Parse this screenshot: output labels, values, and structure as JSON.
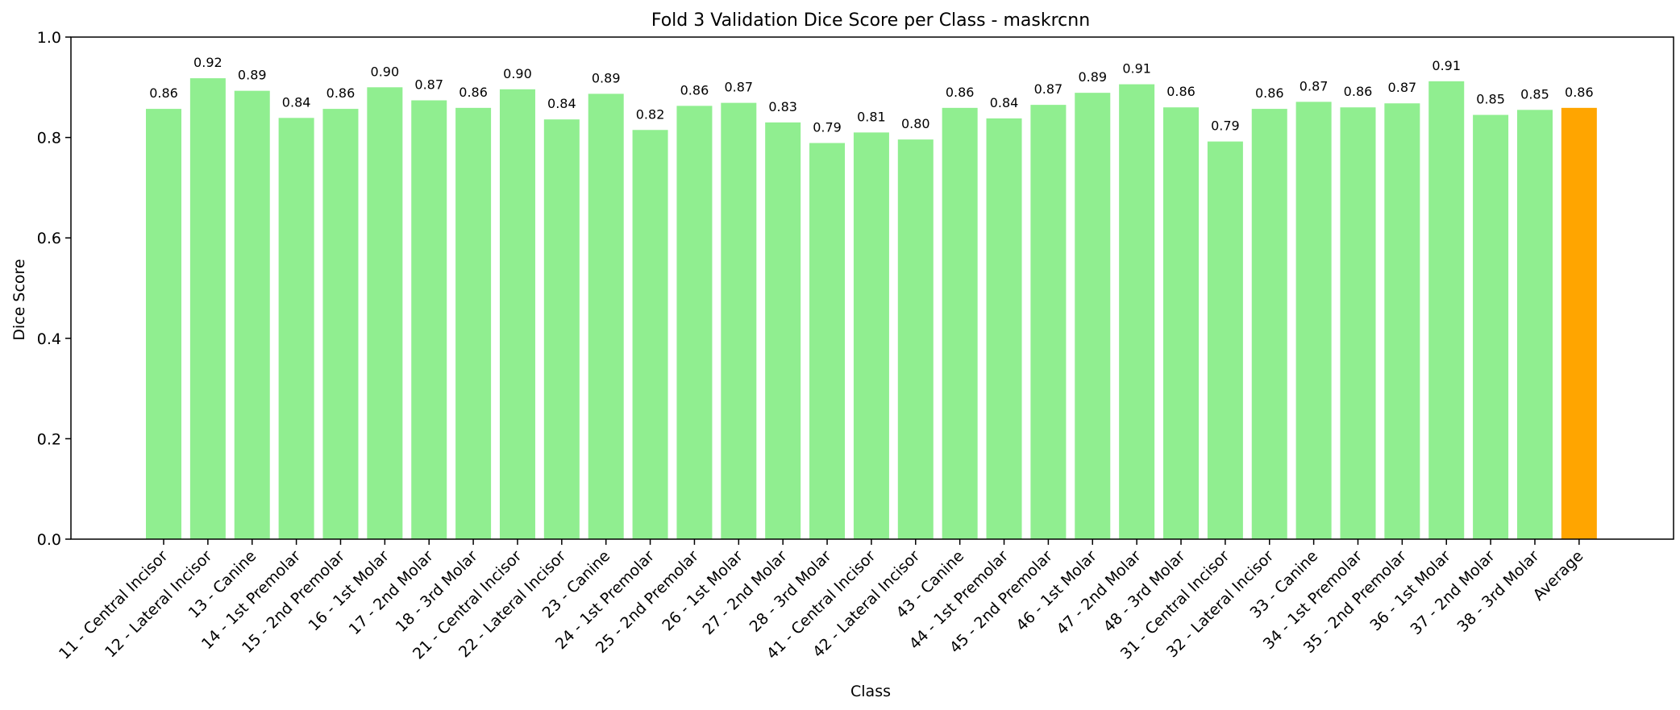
{
  "chart_data": {
    "type": "bar",
    "title": "Fold 3 Validation Dice Score per Class - maskrcnn",
    "xlabel": "Class",
    "ylabel": "Dice Score",
    "ylim": [
      0,
      1.0
    ],
    "yticks": [
      "0.0",
      "0.2",
      "0.4",
      "0.6",
      "0.8",
      "1.0"
    ],
    "grid": false,
    "categories": [
      "11 - Central Incisor",
      "12 - Lateral Incisor",
      "13 - Canine",
      "14 - 1st Premolar",
      "15 - 2nd Premolar",
      "16 - 1st Molar",
      "17 - 2nd Molar",
      "18 - 3rd Molar",
      "21 - Central Incisor",
      "22 - Lateral Incisor",
      "23 - Canine",
      "24 - 1st Premolar",
      "25 - 2nd Premolar",
      "26 - 1st Molar",
      "27 - 2nd Molar",
      "28 - 3rd Molar",
      "41 - Central Incisor",
      "42 - Lateral Incisor",
      "43 - Canine",
      "44 - 1st Premolar",
      "45 - 2nd Premolar",
      "46 - 1st Molar",
      "47 - 2nd Molar",
      "48 - 3rd Molar",
      "31 - Central Incisor",
      "32 - Lateral Incisor",
      "33 - Canine",
      "34 - 1st Premolar",
      "35 - 2nd Premolar",
      "36 - 1st Molar",
      "37 - 2nd Molar",
      "38 - 3rd Molar",
      "Average"
    ],
    "values": [
      0.857,
      0.918,
      0.893,
      0.839,
      0.857,
      0.9,
      0.874,
      0.859,
      0.896,
      0.836,
      0.887,
      0.815,
      0.863,
      0.869,
      0.83,
      0.789,
      0.81,
      0.796,
      0.859,
      0.838,
      0.865,
      0.889,
      0.906,
      0.86,
      0.792,
      0.857,
      0.871,
      0.86,
      0.868,
      0.912,
      0.845,
      0.855,
      0.859
    ],
    "labels": [
      "0.86",
      "0.92",
      "0.89",
      "0.84",
      "0.86",
      "0.90",
      "0.87",
      "0.86",
      "0.90",
      "0.84",
      "0.89",
      "0.82",
      "0.86",
      "0.87",
      "0.83",
      "0.79",
      "0.81",
      "0.80",
      "0.86",
      "0.84",
      "0.87",
      "0.89",
      "0.91",
      "0.86",
      "0.79",
      "0.86",
      "0.87",
      "0.86",
      "0.87",
      "0.91",
      "0.85",
      "0.85",
      "0.86"
    ],
    "colors": {
      "bar": "#90ee90",
      "highlight": "#ffa500"
    },
    "highlight_category": "Average"
  }
}
